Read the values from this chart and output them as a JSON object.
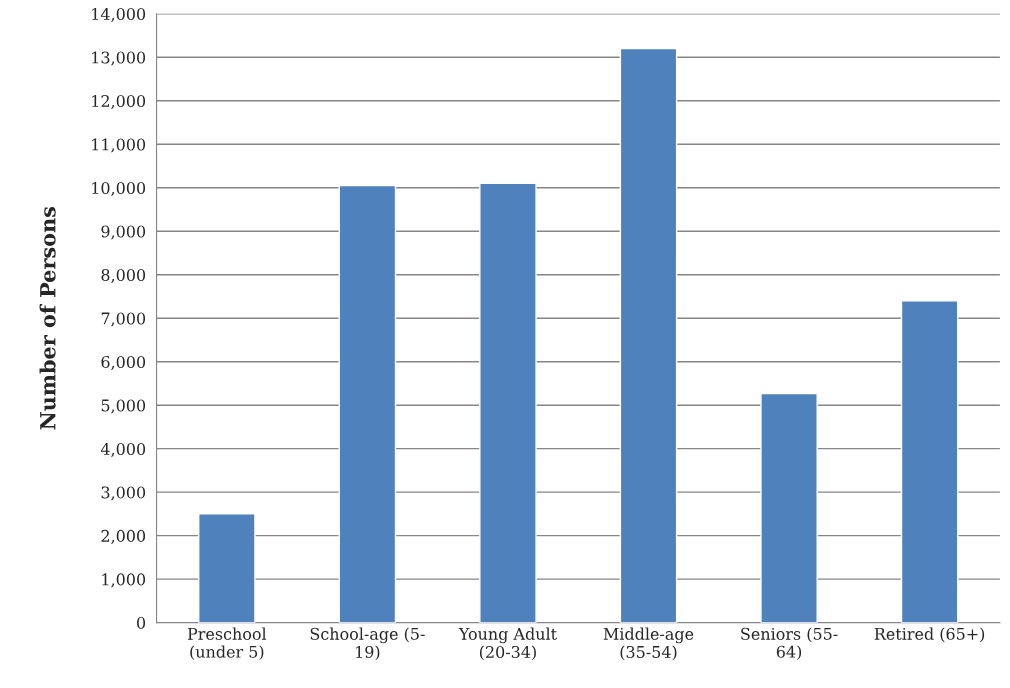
{
  "chart_data": {
    "type": "bar",
    "ylabel": "Number of Persons",
    "categories": [
      "Preschool\n(under 5)",
      "School-age (5-\n19)",
      "Young Adult\n(20-34)",
      "Middle-age\n(35-54)",
      "Seniors (55-\n64)",
      "Retired (65+)"
    ],
    "values": [
      2500,
      10050,
      10100,
      13200,
      5270,
      7400
    ],
    "color": "#4f81bd",
    "ylim": [
      0,
      14000
    ],
    "yticks": [
      0,
      {
        "value": 1000,
        "label": "1,000"
      },
      {
        "value": 2000,
        "label": "2,000"
      },
      {
        "value": 3000,
        "label": "3,000"
      },
      {
        "value": 4000,
        "label": "4,000"
      },
      {
        "value": 5000,
        "label": "5,000"
      },
      {
        "value": 6000,
        "label": "6,000"
      },
      {
        "value": 7000,
        "label": "7,000"
      },
      {
        "value": 8000,
        "label": "8,000"
      },
      {
        "value": 9000,
        "label": "9,000"
      },
      {
        "value": 10000,
        "label": "10,000"
      },
      {
        "value": 11000,
        "label": "11,000"
      },
      {
        "value": 12000,
        "label": "12,000"
      },
      {
        "value": 13000,
        "label": "13,000"
      },
      {
        "value": 14000,
        "label": "14,000"
      }
    ],
    "grid": "y",
    "legend": false
  }
}
